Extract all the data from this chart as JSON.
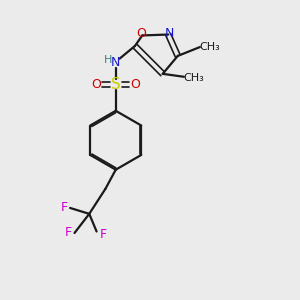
{
  "bg_color": "#ebebeb",
  "bond_color": "#1a1a1a",
  "colors": {
    "N": "#1a1acc",
    "O": "#cc0000",
    "S": "#cccc00",
    "F": "#cc00cc",
    "H": "#408080",
    "C": "#1a1a1a"
  },
  "figsize": [
    3.0,
    3.0
  ],
  "dpi": 100
}
